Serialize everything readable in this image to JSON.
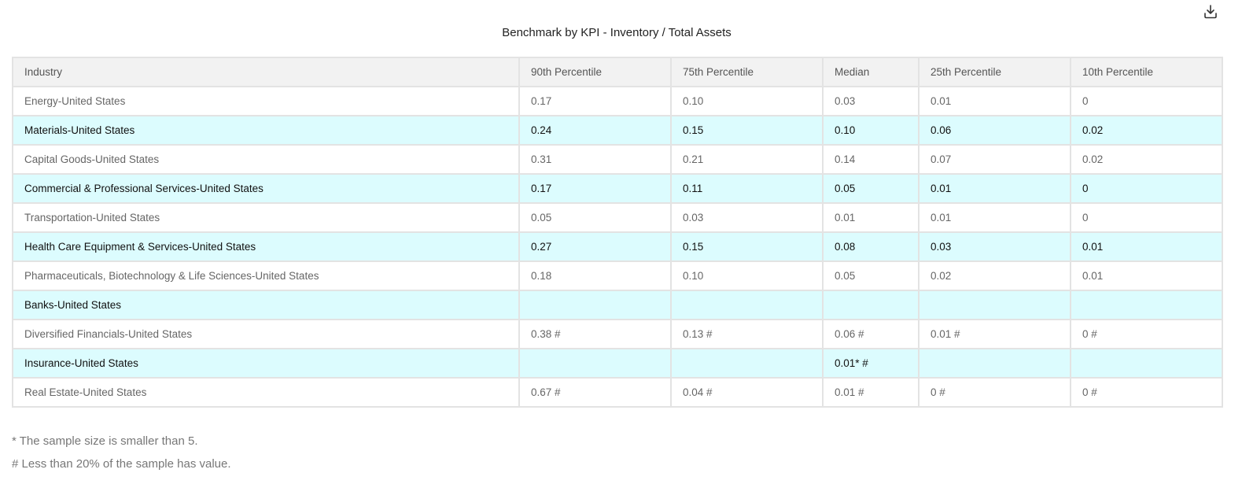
{
  "title": "Benchmark by KPI - Inventory / Total Assets",
  "download_icon": "download-icon",
  "columns": [
    "Industry",
    "90th Percentile",
    "75th Percentile",
    "Median",
    "25th Percentile",
    "10th Percentile"
  ],
  "rows": [
    [
      "Energy-United States",
      "0.17",
      "0.10",
      "0.03",
      "0.01",
      "0"
    ],
    [
      "Materials-United States",
      "0.24",
      "0.15",
      "0.10",
      "0.06",
      "0.02"
    ],
    [
      "Capital Goods-United States",
      "0.31",
      "0.21",
      "0.14",
      "0.07",
      "0.02"
    ],
    [
      "Commercial & Professional Services-United States",
      "0.17",
      "0.11",
      "0.05",
      "0.01",
      "0"
    ],
    [
      "Transportation-United States",
      "0.05",
      "0.03",
      "0.01",
      "0.01",
      "0"
    ],
    [
      "Health Care Equipment & Services-United States",
      "0.27",
      "0.15",
      "0.08",
      "0.03",
      "0.01"
    ],
    [
      "Pharmaceuticals, Biotechnology & Life Sciences-United States",
      "0.18",
      "0.10",
      "0.05",
      "0.02",
      "0.01"
    ],
    [
      "Banks-United States",
      "",
      "",
      "",
      "",
      ""
    ],
    [
      "Diversified Financials-United States",
      "0.38 #",
      "0.13 #",
      "0.06 #",
      "0.01 #",
      "0 #"
    ],
    [
      "Insurance-United States",
      "",
      "",
      "0.01* #",
      "",
      ""
    ],
    [
      "Real Estate-United States",
      "0.67 #",
      "0.04 #",
      "0.01 #",
      "0 #",
      "0 #"
    ]
  ],
  "footnotes": [
    "* The sample size is smaller than 5.",
    "# Less than 20% of the sample has value."
  ],
  "colors": {
    "header_bg": "#f2f2f2",
    "row_alt_bg": "#dcfcfe",
    "border": "#e3e3e3"
  }
}
